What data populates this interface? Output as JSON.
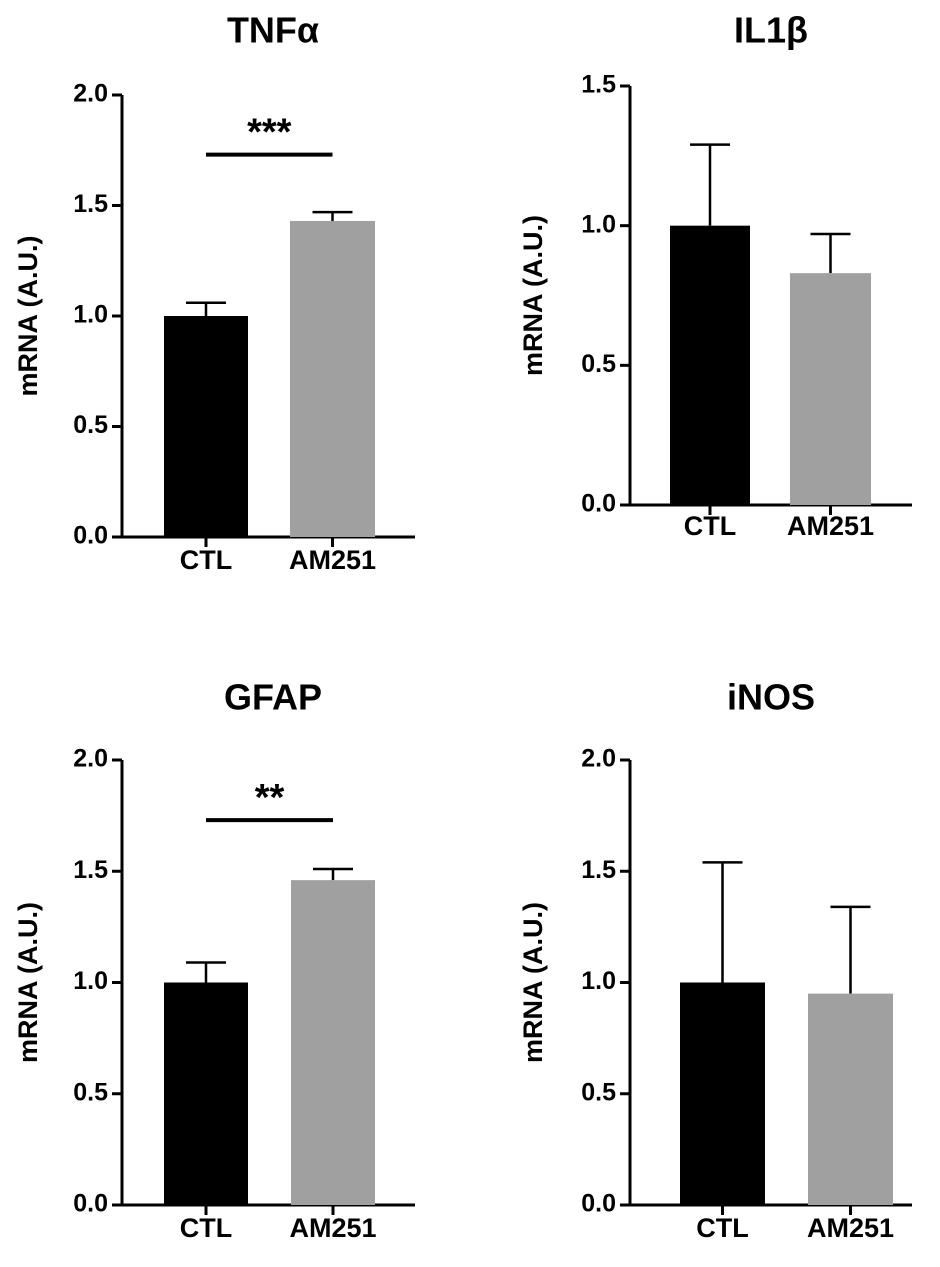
{
  "chart_data": [
    {
      "type": "bar",
      "title": "TNFα",
      "ylabel": "mRNA (A.U.)",
      "xlabel": "",
      "categories": [
        "CTL",
        "AM251"
      ],
      "values": [
        1.0,
        1.43
      ],
      "errors": [
        0.06,
        0.04
      ],
      "colors": [
        "#000000",
        "#a0a0a0"
      ],
      "ylim": [
        0,
        2.0
      ],
      "yticks": [
        "0.0",
        "0.5",
        "1.0",
        "1.5",
        "2.0"
      ],
      "significance": {
        "label": "***",
        "y": 1.73
      }
    },
    {
      "type": "bar",
      "title": "IL1β",
      "ylabel": "mRNA (A.U.)",
      "xlabel": "",
      "categories": [
        "CTL",
        "AM251"
      ],
      "values": [
        1.0,
        0.83
      ],
      "errors": [
        0.29,
        0.14
      ],
      "colors": [
        "#000000",
        "#a0a0a0"
      ],
      "ylim": [
        0,
        1.5
      ],
      "yticks": [
        "0.0",
        "0.5",
        "1.0",
        "1.5"
      ],
      "significance": null
    },
    {
      "type": "bar",
      "title": "GFAP",
      "ylabel": "mRNA (A.U.)",
      "xlabel": "",
      "categories": [
        "CTL",
        "AM251"
      ],
      "values": [
        1.0,
        1.46
      ],
      "errors": [
        0.09,
        0.05
      ],
      "colors": [
        "#000000",
        "#a0a0a0"
      ],
      "ylim": [
        0,
        2.0
      ],
      "yticks": [
        "0.0",
        "0.5",
        "1.0",
        "1.5",
        "2.0"
      ],
      "significance": {
        "label": "**",
        "y": 1.73
      }
    },
    {
      "type": "bar",
      "title": "iNOS",
      "ylabel": "mRNA (A.U.)",
      "xlabel": "",
      "categories": [
        "CTL",
        "AM251"
      ],
      "values": [
        1.0,
        0.95
      ],
      "errors": [
        0.54,
        0.39
      ],
      "colors": [
        "#000000",
        "#a0a0a0"
      ],
      "ylim": [
        0,
        2.0
      ],
      "yticks": [
        "0.0",
        "0.5",
        "1.0",
        "1.5",
        "2.0"
      ],
      "significance": null
    }
  ]
}
